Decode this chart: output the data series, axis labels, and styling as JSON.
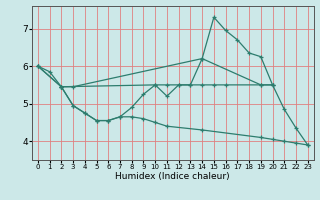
{
  "xlabel": "Humidex (Indice chaleur)",
  "bg_color": "#cce8e8",
  "line_color": "#2d7d6e",
  "grid_color": "#e08080",
  "xlim": [
    -0.5,
    23.5
  ],
  "ylim": [
    3.5,
    7.6
  ],
  "yticks": [
    4,
    5,
    6,
    7
  ],
  "xticks": [
    0,
    1,
    2,
    3,
    4,
    5,
    6,
    7,
    8,
    9,
    10,
    11,
    12,
    13,
    14,
    15,
    16,
    17,
    18,
    19,
    20,
    21,
    22,
    23
  ],
  "line1_x": [
    0,
    1,
    2,
    3,
    14,
    15,
    16,
    17,
    18,
    19,
    20,
    21,
    22,
    23
  ],
  "line1_y": [
    6.0,
    5.85,
    5.45,
    5.45,
    6.2,
    7.3,
    6.95,
    6.7,
    6.35,
    6.25,
    5.5,
    4.85,
    4.35,
    3.9
  ],
  "line2_x": [
    0,
    2,
    10,
    11,
    12,
    13,
    14,
    15,
    16,
    19,
    20
  ],
  "line2_y": [
    6.0,
    5.45,
    5.5,
    5.5,
    5.5,
    5.5,
    5.5,
    5.5,
    5.5,
    5.5,
    5.5
  ],
  "line3_x": [
    2,
    3,
    4,
    5,
    6,
    7,
    8,
    9,
    10,
    11,
    12,
    13,
    14,
    19,
    20
  ],
  "line3_y": [
    5.45,
    4.95,
    4.75,
    4.55,
    4.55,
    4.65,
    4.9,
    5.25,
    5.5,
    5.2,
    5.5,
    5.5,
    6.2,
    5.5,
    5.5
  ],
  "line4_x": [
    0,
    2,
    3,
    4,
    5,
    6,
    7,
    8,
    9,
    10,
    11,
    14,
    19,
    20,
    21,
    22,
    23
  ],
  "line4_y": [
    6.0,
    5.45,
    4.95,
    4.75,
    4.55,
    4.55,
    4.65,
    4.65,
    4.6,
    4.5,
    4.4,
    4.3,
    4.1,
    4.05,
    4.0,
    3.95,
    3.9
  ]
}
